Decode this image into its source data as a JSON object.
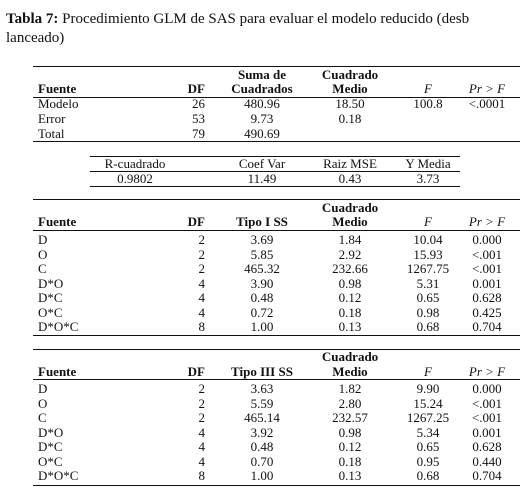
{
  "caption": {
    "label": "Tabla 7:",
    "lines": [
      "Procedimiento GLM de SAS para evaluar el modelo reducido (desb",
      "lanceado)"
    ]
  },
  "tables": [
    {
      "header": [
        [
          "Fuente"
        ],
        [
          "DF"
        ],
        [
          "Suma de",
          "Cuadrados"
        ],
        [
          "Cuadrado",
          "Medio"
        ],
        [
          "F"
        ],
        [
          "Pr > F"
        ]
      ],
      "rows": [
        [
          "Modelo",
          "26",
          "480.96",
          "18.50",
          "100.8",
          "<.0001"
        ],
        [
          "Error",
          "53",
          "9.73",
          "0.18",
          "",
          ""
        ],
        [
          "Total",
          "79",
          "490.69",
          "",
          "",
          ""
        ]
      ]
    },
    {
      "header": [
        [
          "R-cuadrado"
        ],
        [
          "Coef Var"
        ],
        [
          "Raiz MSE"
        ],
        [
          "Y Media"
        ]
      ],
      "rows": [
        [
          "0.9802",
          "11.49",
          "0.43",
          "3.73"
        ]
      ]
    },
    {
      "header": [
        [
          "Fuente"
        ],
        [
          "DF"
        ],
        [
          "Tipo I SS"
        ],
        [
          "Cuadrado",
          "Medio"
        ],
        [
          "F"
        ],
        [
          "Pr > F"
        ]
      ],
      "rows": [
        [
          "D",
          "2",
          "3.69",
          "1.84",
          "10.04",
          "0.000"
        ],
        [
          "O",
          "2",
          "5.85",
          "2.92",
          "15.93",
          "<.001"
        ],
        [
          "C",
          "2",
          "465.32",
          "232.66",
          "1267.75",
          "<.001"
        ],
        [
          "D*O",
          "4",
          "3.90",
          "0.98",
          "5.31",
          "0.001"
        ],
        [
          "D*C",
          "4",
          "0.48",
          "0.12",
          "0.65",
          "0.628"
        ],
        [
          "O*C",
          "4",
          "0.72",
          "0.18",
          "0.98",
          "0.425"
        ],
        [
          "D*O*C",
          "8",
          "1.00",
          "0.13",
          "0.68",
          "0.704"
        ]
      ]
    },
    {
      "header": [
        [
          "Fuente"
        ],
        [
          "DF"
        ],
        [
          "Tipo III SS"
        ],
        [
          "Cuadrado",
          "Medio"
        ],
        [
          "F"
        ],
        [
          "Pr > F"
        ]
      ],
      "rows": [
        [
          "D",
          "2",
          "3.63",
          "1.82",
          "9.90",
          "0.000"
        ],
        [
          "O",
          "2",
          "5.59",
          "2.80",
          "15.24",
          "<.001"
        ],
        [
          "C",
          "2",
          "465.14",
          "232.57",
          "1267.25",
          "<.001"
        ],
        [
          "D*O",
          "4",
          "3.92",
          "0.98",
          "5.34",
          "0.001"
        ],
        [
          "D*C",
          "4",
          "0.48",
          "0.12",
          "0.65",
          "0.628"
        ],
        [
          "O*C",
          "4",
          "0.70",
          "0.18",
          "0.95",
          "0.440"
        ],
        [
          "D*O*C",
          "8",
          "1.00",
          "0.13",
          "0.68",
          "0.704"
        ]
      ]
    }
  ]
}
